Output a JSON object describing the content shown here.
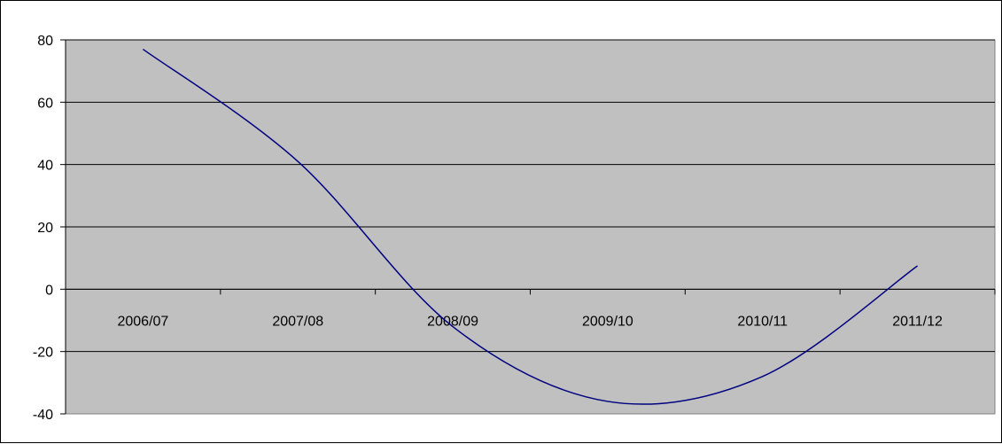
{
  "chart_data": {
    "type": "line",
    "title": "",
    "xlabel": "",
    "ylabel": "",
    "categories": [
      "2006/07",
      "2007/08",
      "2008/09",
      "2009/10",
      "2010/11",
      "2011/12"
    ],
    "ylim": [
      -40,
      80
    ],
    "yticks": [
      80,
      60,
      40,
      20,
      0,
      -20,
      -40
    ],
    "grid": true,
    "legend": "none",
    "plot_background": "#c0c0c0",
    "line_color": "#000080",
    "series": [
      {
        "x": [
          "2006/07",
          "2007/08",
          "2008/09",
          "2009/10",
          "2010/11",
          "2011/12"
        ],
        "values": [
          77,
          41,
          -12,
          -36,
          -28,
          7.5
        ]
      }
    ]
  }
}
